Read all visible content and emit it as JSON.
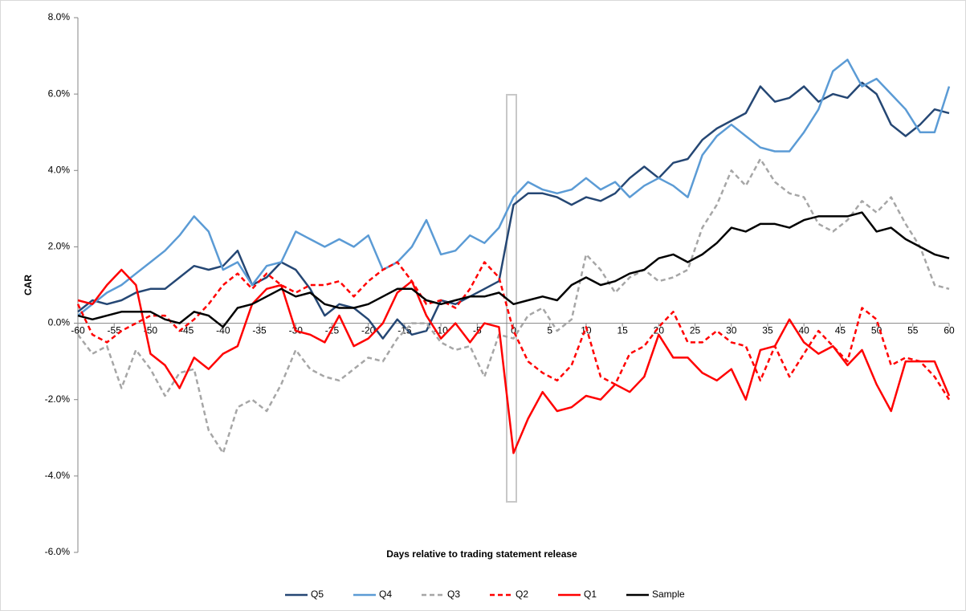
{
  "chart_data": {
    "type": "line",
    "xlabel": "Days relative to trading statement release",
    "ylabel": "CAR",
    "x": [
      -60,
      -58,
      -56,
      -54,
      -52,
      -50,
      -48,
      -46,
      -44,
      -42,
      -40,
      -38,
      -36,
      -34,
      -32,
      -30,
      -28,
      -26,
      -24,
      -22,
      -20,
      -18,
      -16,
      -14,
      -12,
      -10,
      -8,
      -6,
      -4,
      -2,
      0,
      2,
      4,
      6,
      8,
      10,
      12,
      14,
      16,
      18,
      20,
      22,
      24,
      26,
      28,
      30,
      32,
      34,
      36,
      38,
      40,
      42,
      44,
      46,
      48,
      50,
      52,
      54,
      56,
      58,
      60
    ],
    "xlim": [
      -60,
      60
    ],
    "xticks": [
      -60,
      -55,
      -50,
      -45,
      -40,
      -35,
      -30,
      -25,
      -20,
      -15,
      -10,
      -5,
      0,
      5,
      10,
      15,
      20,
      25,
      30,
      35,
      40,
      45,
      50,
      55,
      60
    ],
    "ylim": [
      -6,
      8
    ],
    "yticks": [
      {
        "value": -6,
        "label": "-6.0%"
      },
      {
        "value": -4,
        "label": "-4.0%"
      },
      {
        "value": -2,
        "label": "-2.0%"
      },
      {
        "value": 0,
        "label": "0.0%"
      },
      {
        "value": 2,
        "label": "2.0%"
      },
      {
        "value": 4,
        "label": "4.0%"
      },
      {
        "value": 6,
        "label": "6.0%"
      },
      {
        "value": 8,
        "label": "8.0%"
      }
    ],
    "legend": "bottom",
    "series": [
      {
        "name": "Q5",
        "color": "#254774",
        "style": "solid",
        "values": [
          0.3,
          0.6,
          0.5,
          0.6,
          0.8,
          0.9,
          0.9,
          1.2,
          1.5,
          1.4,
          1.5,
          1.9,
          1.0,
          1.2,
          1.6,
          1.4,
          0.9,
          0.2,
          0.5,
          0.4,
          0.1,
          -0.4,
          0.1,
          -0.3,
          -0.2,
          0.6,
          0.5,
          0.7,
          0.9,
          1.1,
          3.1,
          3.4,
          3.4,
          3.3,
          3.1,
          3.3,
          3.2,
          3.4,
          3.8,
          4.1,
          3.8,
          4.2,
          4.3,
          4.8,
          5.1,
          5.3,
          5.5,
          6.2,
          5.8,
          5.9,
          6.2,
          5.8,
          6.0,
          5.9,
          6.3,
          6.0,
          5.2,
          4.9,
          5.2,
          5.6,
          5.5
        ]
      },
      {
        "name": "Q4",
        "color": "#5b9bd5",
        "style": "solid",
        "values": [
          0.2,
          0.5,
          0.8,
          1.0,
          1.3,
          1.6,
          1.9,
          2.3,
          2.8,
          2.4,
          1.4,
          1.6,
          1.0,
          1.5,
          1.6,
          2.4,
          2.2,
          2.0,
          2.2,
          2.0,
          2.3,
          1.4,
          1.6,
          2.0,
          2.7,
          1.8,
          1.9,
          2.3,
          2.1,
          2.5,
          3.3,
          3.7,
          3.5,
          3.4,
          3.5,
          3.8,
          3.5,
          3.7,
          3.3,
          3.6,
          3.8,
          3.6,
          3.3,
          4.4,
          4.9,
          5.2,
          4.9,
          4.6,
          4.5,
          4.5,
          5.0,
          5.6,
          6.6,
          6.9,
          6.2,
          6.4,
          6.0,
          5.6,
          5.0,
          5.0,
          6.2
        ]
      },
      {
        "name": "Q3",
        "color": "#a6a6a6",
        "style": "dashed",
        "values": [
          -0.3,
          -0.8,
          -0.6,
          -1.7,
          -0.7,
          -1.2,
          -1.9,
          -1.3,
          -1.2,
          -2.8,
          -3.4,
          -2.2,
          -2.0,
          -2.3,
          -1.6,
          -0.7,
          -1.2,
          -1.4,
          -1.5,
          -1.2,
          -0.9,
          -1.0,
          -0.4,
          0.0,
          0.0,
          -0.5,
          -0.7,
          -0.6,
          -1.4,
          -0.3,
          -0.4,
          0.2,
          0.4,
          -0.2,
          0.1,
          1.8,
          1.4,
          0.8,
          1.2,
          1.4,
          1.1,
          1.2,
          1.4,
          2.5,
          3.1,
          4.0,
          3.6,
          4.3,
          3.7,
          3.4,
          3.3,
          2.6,
          2.4,
          2.7,
          3.2,
          2.9,
          3.3,
          2.6,
          2.0,
          1.0,
          0.9
        ]
      },
      {
        "name": "Q2",
        "color": "#ff0000",
        "style": "dashed",
        "values": [
          0.5,
          -0.3,
          -0.5,
          -0.2,
          0.0,
          0.2,
          0.2,
          -0.2,
          0.1,
          0.5,
          1.0,
          1.3,
          0.9,
          1.3,
          1.0,
          0.8,
          1.0,
          1.0,
          1.1,
          0.7,
          1.1,
          1.4,
          1.6,
          1.1,
          0.5,
          0.6,
          0.4,
          0.9,
          1.6,
          1.2,
          -0.2,
          -1.0,
          -1.3,
          -1.5,
          -1.1,
          -0.1,
          -1.4,
          -1.6,
          -0.8,
          -0.6,
          -0.1,
          0.3,
          -0.5,
          -0.5,
          -0.2,
          -0.5,
          -0.6,
          -1.5,
          -0.6,
          -1.4,
          -0.8,
          -0.2,
          -0.6,
          -1.0,
          0.4,
          0.1,
          -1.1,
          -0.9,
          -1.0,
          -1.4,
          -2.0
        ]
      },
      {
        "name": "Q1",
        "color": "#ff0000",
        "style": "solid",
        "values": [
          0.6,
          0.5,
          1.0,
          1.4,
          1.0,
          -0.8,
          -1.1,
          -1.7,
          -0.9,
          -1.2,
          -0.8,
          -0.6,
          0.5,
          0.9,
          1.0,
          -0.2,
          -0.3,
          -0.5,
          0.2,
          -0.6,
          -0.4,
          0.0,
          0.8,
          1.1,
          0.2,
          -0.4,
          0.0,
          -0.5,
          0.0,
          -0.1,
          -3.4,
          -2.5,
          -1.8,
          -2.3,
          -2.2,
          -1.9,
          -2.0,
          -1.6,
          -1.8,
          -1.4,
          -0.3,
          -0.9,
          -0.9,
          -1.3,
          -1.5,
          -1.2,
          -2.0,
          -0.7,
          -0.6,
          0.1,
          -0.5,
          -0.8,
          -0.6,
          -1.1,
          -0.7,
          -1.6,
          -2.3,
          -1.0,
          -1.0,
          -1.0,
          -1.9
        ]
      },
      {
        "name": "Sample",
        "color": "#000000",
        "style": "solid",
        "values": [
          0.2,
          0.1,
          0.2,
          0.3,
          0.3,
          0.3,
          0.1,
          0.0,
          0.3,
          0.2,
          -0.1,
          0.4,
          0.5,
          0.7,
          0.9,
          0.7,
          0.8,
          0.5,
          0.4,
          0.4,
          0.5,
          0.7,
          0.9,
          0.9,
          0.6,
          0.5,
          0.6,
          0.7,
          0.7,
          0.8,
          0.5,
          0.6,
          0.7,
          0.6,
          1.0,
          1.2,
          1.0,
          1.1,
          1.3,
          1.4,
          1.7,
          1.8,
          1.6,
          1.8,
          2.1,
          2.5,
          2.4,
          2.6,
          2.6,
          2.5,
          2.7,
          2.8,
          2.8,
          2.8,
          2.9,
          2.4,
          2.5,
          2.2,
          2.0,
          1.8,
          1.7
        ]
      }
    ]
  }
}
